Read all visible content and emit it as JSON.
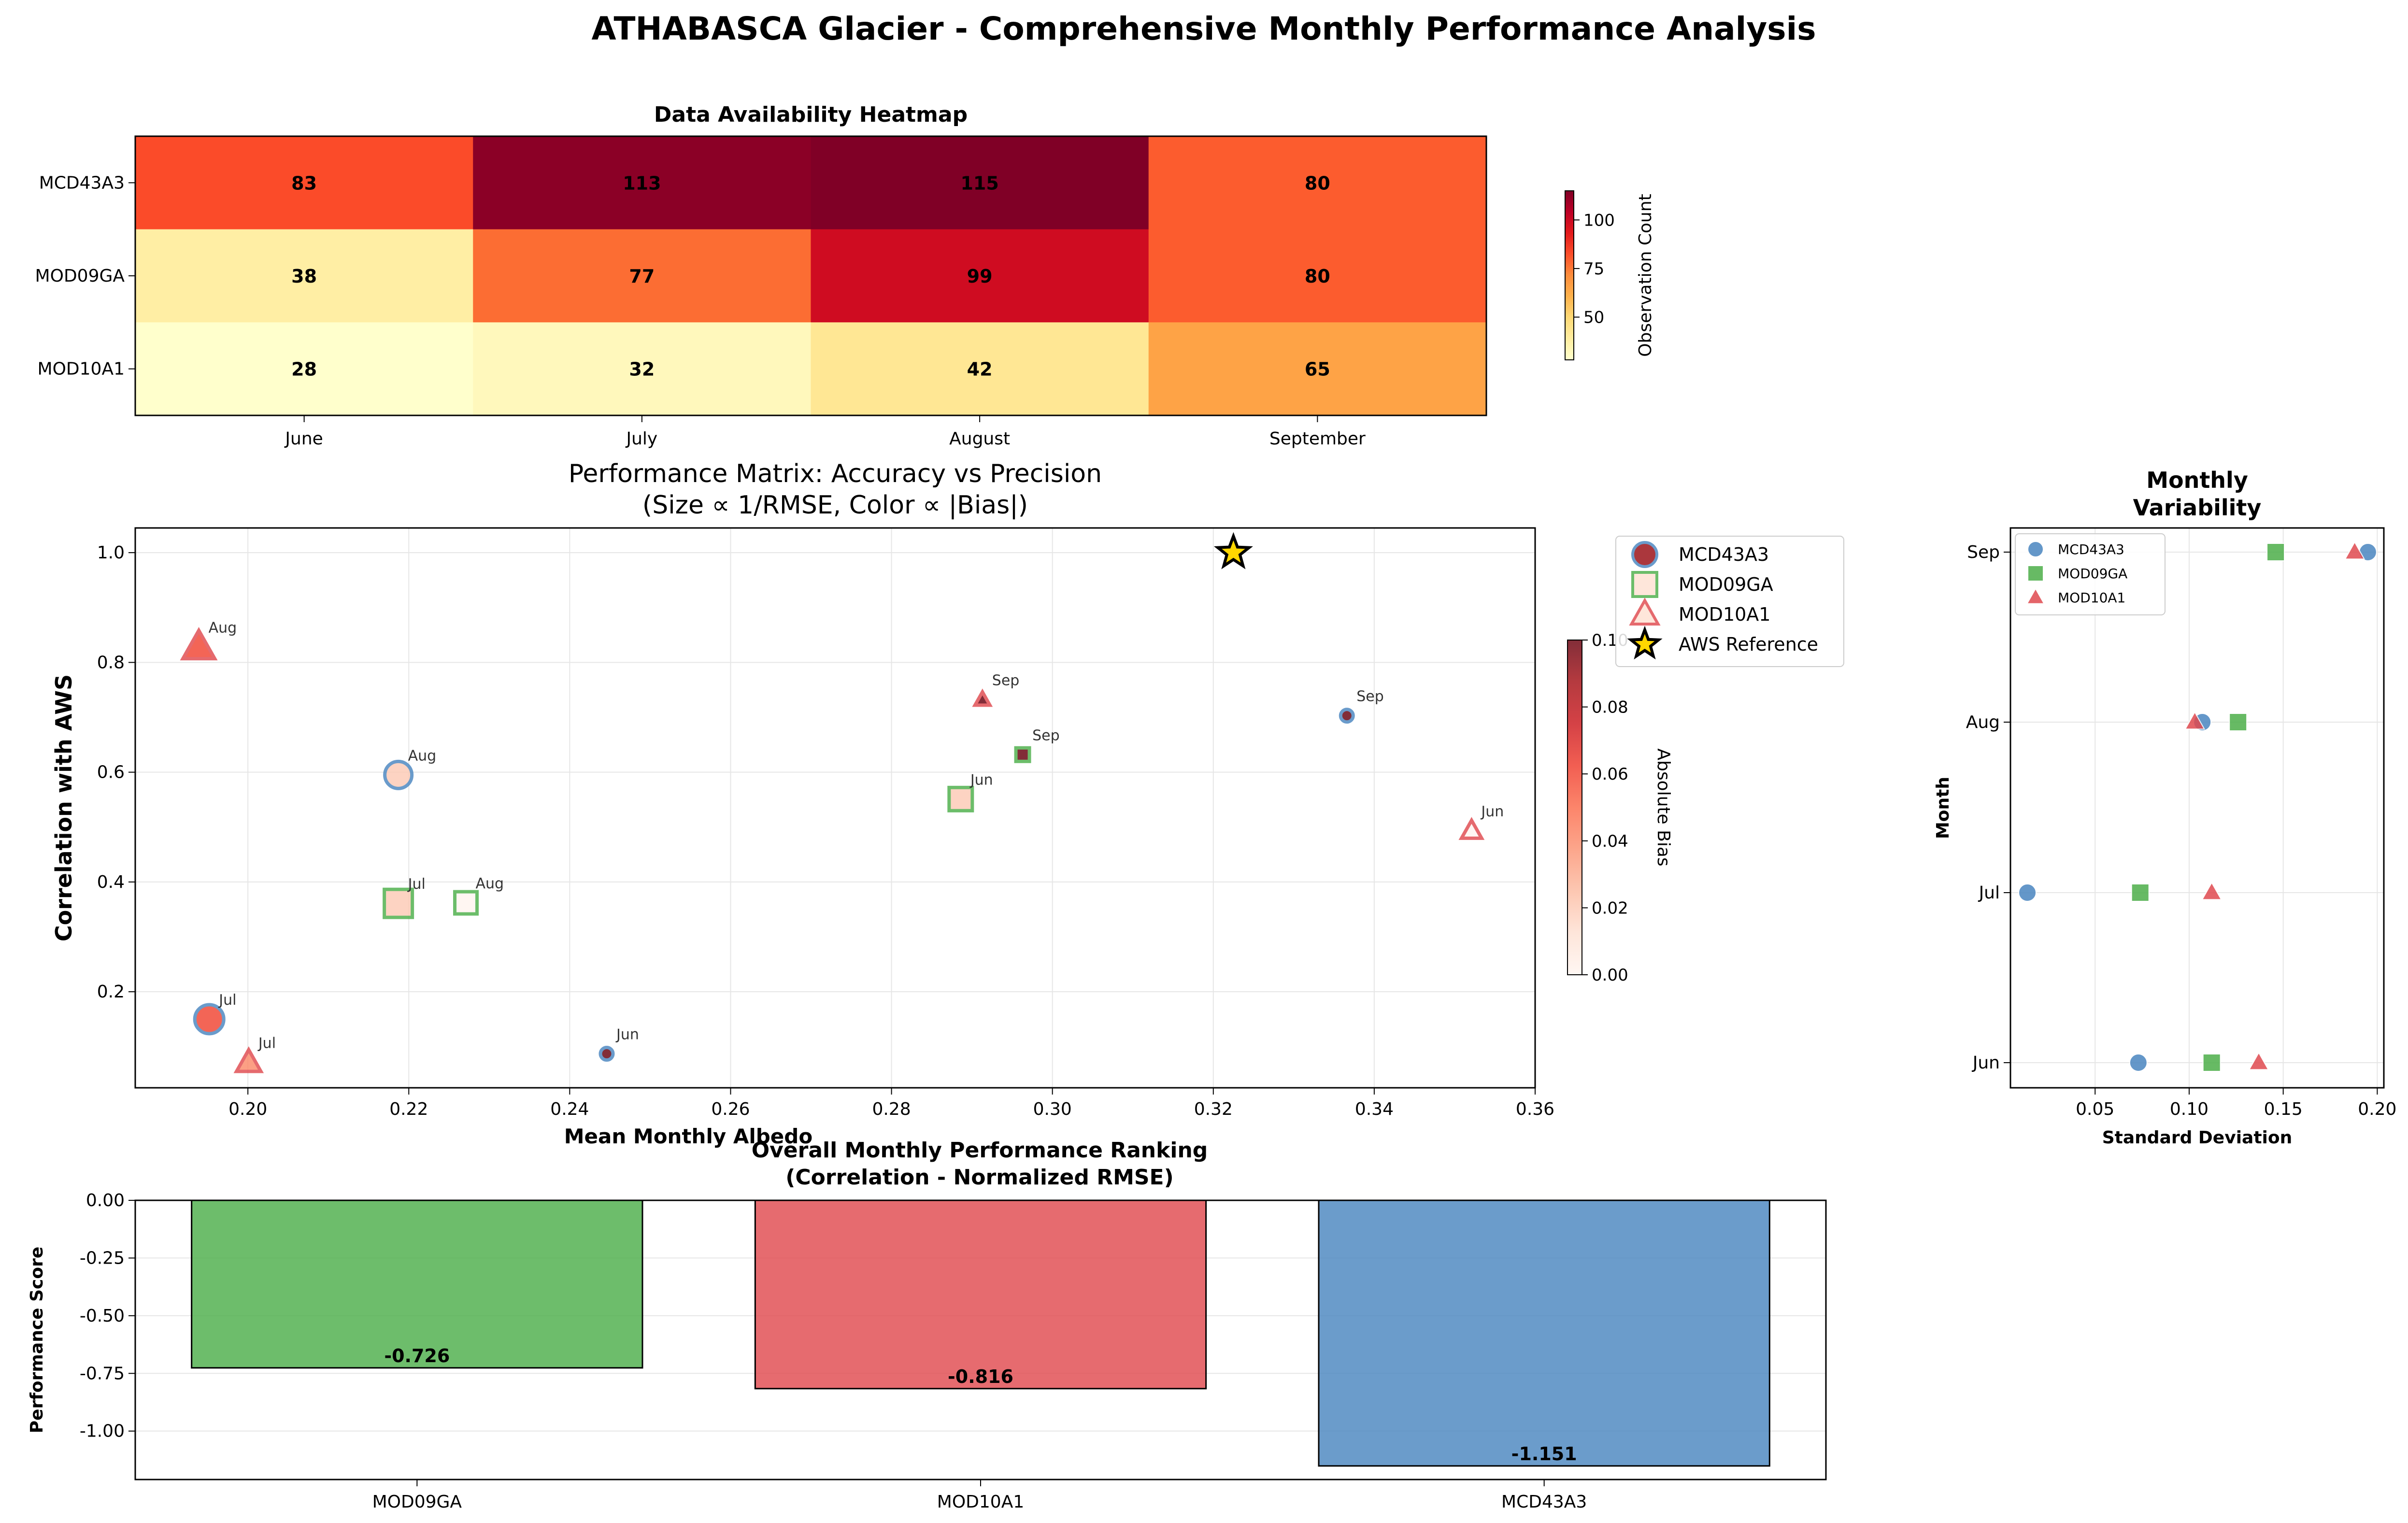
{
  "title": "ATHABASCA Glacier - Comprehensive Monthly Performance Analysis",
  "colors": {
    "MCD43A3": "#4a86c0",
    "MOD09GA": "#4daf4a",
    "MOD10A1": "#e04a4f",
    "star": "#ffd700"
  },
  "chart_data": [
    {
      "id": "heatmap",
      "type": "heatmap",
      "title": "Data Availability Heatmap",
      "columns": [
        "June",
        "July",
        "August",
        "September"
      ],
      "rows": [
        "MCD43A3",
        "MOD09GA",
        "MOD10A1"
      ],
      "values": [
        [
          83,
          113,
          115,
          80
        ],
        [
          38,
          77,
          99,
          80
        ],
        [
          28,
          32,
          42,
          65
        ]
      ],
      "colorbar": {
        "label": "Observation Count",
        "range": [
          28,
          115
        ],
        "ticks": [
          50,
          75,
          100
        ]
      }
    },
    {
      "id": "performance_matrix",
      "type": "scatter",
      "title": "Performance Matrix: Accuracy vs Precision",
      "subtitle": "(Size ∝ 1/RMSE, Color ∝ |Bias|)",
      "xlabel": "Mean Monthly Albedo",
      "ylabel": "Correlation with AWS",
      "xlim": [
        0.186,
        0.36
      ],
      "ylim": [
        0.025,
        1.045
      ],
      "xticks": [
        0.2,
        0.22,
        0.24,
        0.26,
        0.28,
        0.3,
        0.32,
        0.34,
        0.36
      ],
      "yticks": [
        0.2,
        0.4,
        0.6,
        0.8,
        1.0
      ],
      "colorbar": {
        "label": "Absolute Bias",
        "range": [
          0,
          0.1
        ],
        "ticks": [
          0.0,
          0.02,
          0.04,
          0.06,
          0.08,
          0.1
        ]
      },
      "legend": [
        "MCD43A3",
        "MOD09GA",
        "MOD10A1",
        "AWS Reference"
      ],
      "series": [
        {
          "name": "MCD43A3",
          "marker": "circle",
          "points": [
            {
              "label": "Jun",
              "x": 0.2446,
              "y": 0.087,
              "size": 13,
              "bias": 0.1
            },
            {
              "label": "Jul",
              "x": 0.1952,
              "y": 0.15,
              "size": 30,
              "bias": 0.06
            },
            {
              "label": "Aug",
              "x": 0.2187,
              "y": 0.595,
              "size": 28,
              "bias": 0.02
            },
            {
              "label": "Sep",
              "x": 0.3366,
              "y": 0.703,
              "size": 13,
              "bias": 0.1
            }
          ]
        },
        {
          "name": "MOD09GA",
          "marker": "square",
          "points": [
            {
              "label": "Jun",
              "x": 0.2886,
              "y": 0.551,
              "size": 24,
              "bias": 0.02
            },
            {
              "label": "Jul",
              "x": 0.2187,
              "y": 0.361,
              "size": 29,
              "bias": 0.02
            },
            {
              "label": "Aug",
              "x": 0.2271,
              "y": 0.362,
              "size": 23,
              "bias": 0.0
            },
            {
              "label": "Sep",
              "x": 0.2963,
              "y": 0.632,
              "size": 14,
              "bias": 0.1
            }
          ]
        },
        {
          "name": "MOD10A1",
          "marker": "triangle",
          "points": [
            {
              "label": "Jun",
              "x": 0.3521,
              "y": 0.493,
              "size": 19,
              "bias": 0.0
            },
            {
              "label": "Jul",
              "x": 0.2001,
              "y": 0.071,
              "size": 23,
              "bias": 0.04
            },
            {
              "label": "Aug",
              "x": 0.1939,
              "y": 0.828,
              "size": 30,
              "bias": 0.06
            },
            {
              "label": "Sep",
              "x": 0.2913,
              "y": 0.732,
              "size": 14,
              "bias": 0.1
            }
          ]
        }
      ],
      "reference": {
        "name": "AWS Reference",
        "x": 0.3225,
        "y": 1.0
      }
    },
    {
      "id": "monthly_variability",
      "type": "scatter",
      "title": "Monthly\nVariability",
      "xlabel": "Standard Deviation",
      "ylabel": "Month",
      "xlim": [
        0.005,
        0.2035
      ],
      "xticks": [
        0.05,
        0.1,
        0.15,
        0.2
      ],
      "categories": [
        "Jun",
        "Jul",
        "Aug",
        "Sep"
      ],
      "legend": [
        "MCD43A3",
        "MOD09GA",
        "MOD10A1"
      ],
      "series": [
        {
          "name": "MCD43A3",
          "marker": "circle",
          "x": [
            0.073,
            0.014,
            0.107,
            0.195
          ]
        },
        {
          "name": "MOD09GA",
          "marker": "square",
          "x": [
            0.112,
            0.074,
            0.126,
            0.146
          ]
        },
        {
          "name": "MOD10A1",
          "marker": "triangle",
          "x": [
            0.137,
            0.112,
            0.103,
            0.188
          ]
        }
      ]
    },
    {
      "id": "ranking",
      "type": "bar",
      "title": "Overall Monthly Performance Ranking\n(Correlation - Normalized RMSE)",
      "ylabel": "Performance Score",
      "categories": [
        "MOD09GA",
        "MOD10A1",
        "MCD43A3"
      ],
      "values": [
        -0.726,
        -0.816,
        -1.151
      ],
      "value_labels": [
        "-0.726",
        "-0.816",
        "-1.151"
      ],
      "ylim": [
        -1.21,
        0.0
      ],
      "yticks": [
        "0.00",
        "-0.25",
        "-0.50",
        "-0.75",
        "-1.00"
      ]
    }
  ]
}
